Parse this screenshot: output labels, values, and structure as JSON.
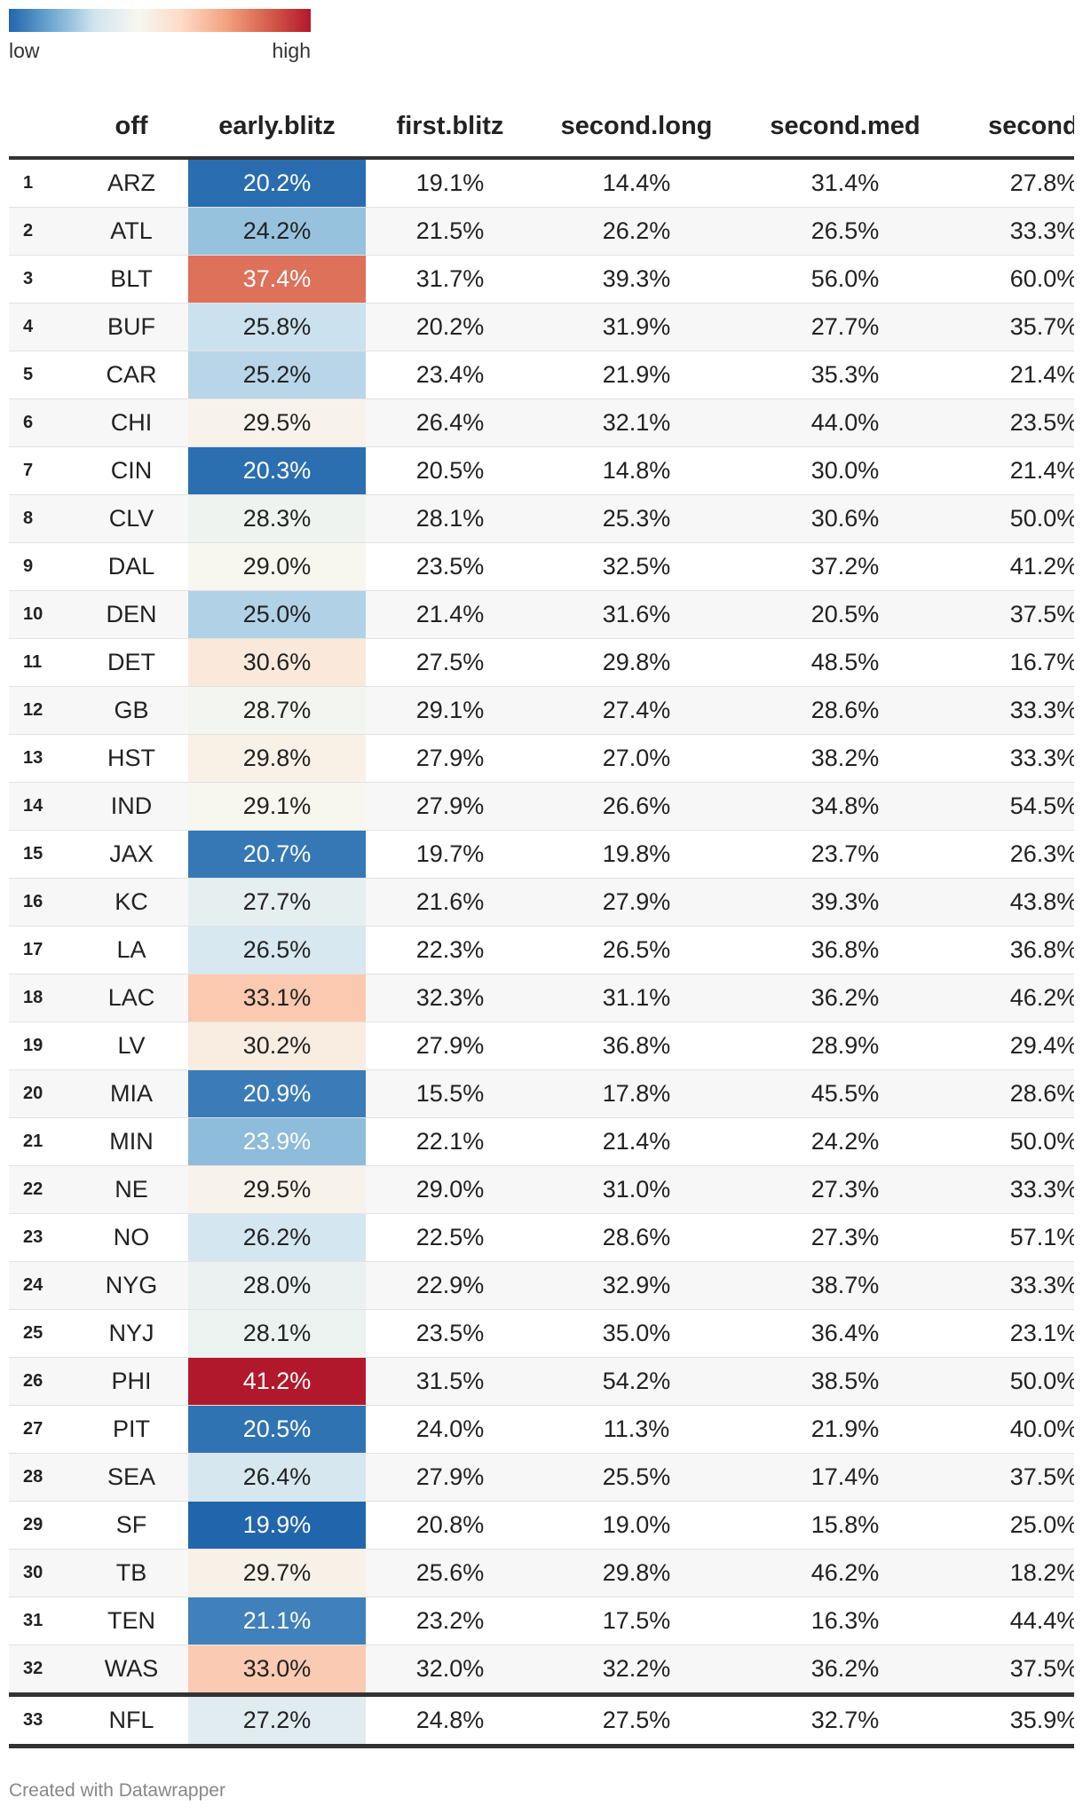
{
  "legend": {
    "low_label": "low",
    "high_label": "high",
    "colors": [
      "#2166ac",
      "#f7f7f0",
      "#b2182b"
    ]
  },
  "columns": [
    "",
    "off",
    "early.blitz",
    "first.blitz",
    "second.long",
    "second.med",
    "second.s"
  ],
  "rows": [
    [
      "1",
      "ARZ",
      "20.2%",
      "19.1%",
      "14.4%",
      "31.4%",
      "27.8%"
    ],
    [
      "2",
      "ATL",
      "24.2%",
      "21.5%",
      "26.2%",
      "26.5%",
      "33.3%"
    ],
    [
      "3",
      "BLT",
      "37.4%",
      "31.7%",
      "39.3%",
      "56.0%",
      "60.0%"
    ],
    [
      "4",
      "BUF",
      "25.8%",
      "20.2%",
      "31.9%",
      "27.7%",
      "35.7%"
    ],
    [
      "5",
      "CAR",
      "25.2%",
      "23.4%",
      "21.9%",
      "35.3%",
      "21.4%"
    ],
    [
      "6",
      "CHI",
      "29.5%",
      "26.4%",
      "32.1%",
      "44.0%",
      "23.5%"
    ],
    [
      "7",
      "CIN",
      "20.3%",
      "20.5%",
      "14.8%",
      "30.0%",
      "21.4%"
    ],
    [
      "8",
      "CLV",
      "28.3%",
      "28.1%",
      "25.3%",
      "30.6%",
      "50.0%"
    ],
    [
      "9",
      "DAL",
      "29.0%",
      "23.5%",
      "32.5%",
      "37.2%",
      "41.2%"
    ],
    [
      "10",
      "DEN",
      "25.0%",
      "21.4%",
      "31.6%",
      "20.5%",
      "37.5%"
    ],
    [
      "11",
      "DET",
      "30.6%",
      "27.5%",
      "29.8%",
      "48.5%",
      "16.7%"
    ],
    [
      "12",
      "GB",
      "28.7%",
      "29.1%",
      "27.4%",
      "28.6%",
      "33.3%"
    ],
    [
      "13",
      "HST",
      "29.8%",
      "27.9%",
      "27.0%",
      "38.2%",
      "33.3%"
    ],
    [
      "14",
      "IND",
      "29.1%",
      "27.9%",
      "26.6%",
      "34.8%",
      "54.5%"
    ],
    [
      "15",
      "JAX",
      "20.7%",
      "19.7%",
      "19.8%",
      "23.7%",
      "26.3%"
    ],
    [
      "16",
      "KC",
      "27.7%",
      "21.6%",
      "27.9%",
      "39.3%",
      "43.8%"
    ],
    [
      "17",
      "LA",
      "26.5%",
      "22.3%",
      "26.5%",
      "36.8%",
      "36.8%"
    ],
    [
      "18",
      "LAC",
      "33.1%",
      "32.3%",
      "31.1%",
      "36.2%",
      "46.2%"
    ],
    [
      "19",
      "LV",
      "30.2%",
      "27.9%",
      "36.8%",
      "28.9%",
      "29.4%"
    ],
    [
      "20",
      "MIA",
      "20.9%",
      "15.5%",
      "17.8%",
      "45.5%",
      "28.6%"
    ],
    [
      "21",
      "MIN",
      "23.9%",
      "22.1%",
      "21.4%",
      "24.2%",
      "50.0%"
    ],
    [
      "22",
      "NE",
      "29.5%",
      "29.0%",
      "31.0%",
      "27.3%",
      "33.3%"
    ],
    [
      "23",
      "NO",
      "26.2%",
      "22.5%",
      "28.6%",
      "27.3%",
      "57.1%"
    ],
    [
      "24",
      "NYG",
      "28.0%",
      "22.9%",
      "32.9%",
      "38.7%",
      "33.3%"
    ],
    [
      "25",
      "NYJ",
      "28.1%",
      "23.5%",
      "35.0%",
      "36.4%",
      "23.1%"
    ],
    [
      "26",
      "PHI",
      "41.2%",
      "31.5%",
      "54.2%",
      "38.5%",
      "50.0%"
    ],
    [
      "27",
      "PIT",
      "20.5%",
      "24.0%",
      "11.3%",
      "21.9%",
      "40.0%"
    ],
    [
      "28",
      "SEA",
      "26.4%",
      "27.9%",
      "25.5%",
      "17.4%",
      "37.5%"
    ],
    [
      "29",
      "SF",
      "19.9%",
      "20.8%",
      "19.0%",
      "15.8%",
      "25.0%"
    ],
    [
      "30",
      "TB",
      "29.7%",
      "25.6%",
      "29.8%",
      "46.2%",
      "18.2%"
    ],
    [
      "31",
      "TEN",
      "21.1%",
      "23.2%",
      "17.5%",
      "16.3%",
      "44.4%"
    ],
    [
      "32",
      "WAS",
      "33.0%",
      "32.0%",
      "32.2%",
      "36.2%",
      "37.5%"
    ]
  ],
  "footer_row": [
    "33",
    "NFL",
    "27.2%",
    "24.8%",
    "27.5%",
    "32.7%",
    "35.9%"
  ],
  "credit": "Created with Datawrapper",
  "chart_data": {
    "type": "table",
    "title": "",
    "heatmap_column": "early.blitz",
    "heatmap_range": [
      19.9,
      41.2
    ],
    "columns": [
      "",
      "off",
      "early.blitz",
      "first.blitz",
      "second.long",
      "second.med",
      "second.s"
    ],
    "teams": [
      "ARZ",
      "ATL",
      "BLT",
      "BUF",
      "CAR",
      "CHI",
      "CIN",
      "CLV",
      "DAL",
      "DEN",
      "DET",
      "GB",
      "HST",
      "IND",
      "JAX",
      "KC",
      "LA",
      "LAC",
      "LV",
      "MIA",
      "MIN",
      "NE",
      "NO",
      "NYG",
      "NYJ",
      "PHI",
      "PIT",
      "SEA",
      "SF",
      "TB",
      "TEN",
      "WAS",
      "NFL"
    ],
    "early_blitz": [
      20.2,
      24.2,
      37.4,
      25.8,
      25.2,
      29.5,
      20.3,
      28.3,
      29.0,
      25.0,
      30.6,
      28.7,
      29.8,
      29.1,
      20.7,
      27.7,
      26.5,
      33.1,
      30.2,
      20.9,
      23.9,
      29.5,
      26.2,
      28.0,
      28.1,
      41.2,
      20.5,
      26.4,
      19.9,
      29.7,
      21.1,
      33.0,
      27.2
    ]
  }
}
